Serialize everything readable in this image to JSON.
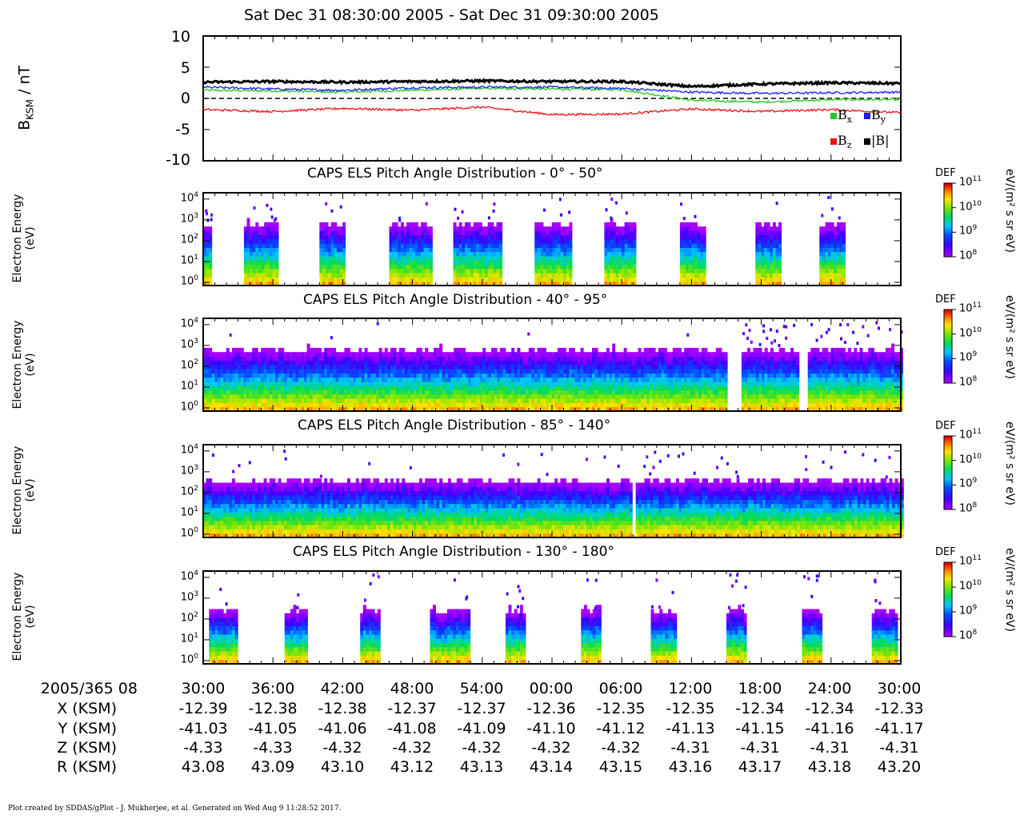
{
  "title": "Sat Dec 31 08:30:00 2005 - Sat Dec 31 09:30:00 2005",
  "mag_panel": {
    "ylabel": "B",
    "ylabel_sub": "KSM",
    "ylabel_unit": " / nT",
    "yticks": [
      "10",
      "5",
      "0",
      "-5",
      "-10"
    ],
    "legend": [
      {
        "label": "B",
        "sub": "x",
        "color": "#22cc22"
      },
      {
        "label": "B",
        "sub": "y",
        "color": "#1a1aff"
      },
      {
        "label": "B",
        "sub": "z",
        "color": "#ee1111"
      },
      {
        "label": "|B|",
        "sub": "",
        "color": "#000000"
      }
    ]
  },
  "spectrogram_panels": [
    {
      "title": "CAPS ELS Pitch Angle Distribution - 0° - 50°",
      "ylabel_line1": "Electron Energy",
      "ylabel_line2": "(eV)"
    },
    {
      "title": "CAPS ELS Pitch Angle Distribution - 40° - 95°",
      "ylabel_line1": "Electron Energy",
      "ylabel_line2": "(eV)"
    },
    {
      "title": "CAPS ELS Pitch Angle Distribution - 85° - 140°",
      "ylabel_line1": "Electron Energy",
      "ylabel_line2": "(eV)"
    },
    {
      "title": "CAPS ELS Pitch Angle Distribution - 130° - 180°",
      "ylabel_line1": "Electron Energy",
      "ylabel_line2": "(eV)"
    }
  ],
  "energy_ticks": [
    "10",
    "10",
    "10",
    "10",
    "10"
  ],
  "energy_tick_exps": [
    "4",
    "3",
    "2",
    "1",
    "0"
  ],
  "colorbar": {
    "label": "DEF",
    "unit": "eV/(m² s sr eV)",
    "ticks": [
      "10",
      "10",
      "10",
      "10"
    ],
    "tick_exps": [
      "11",
      "10",
      "9",
      "8"
    ]
  },
  "ephemeris": {
    "date_label": "2005/365 08",
    "times": [
      "30:00",
      "36:00",
      "42:00",
      "48:00",
      "54:00",
      "00:00",
      "06:00",
      "12:00",
      "18:00",
      "24:00",
      "30:00"
    ],
    "rows": [
      {
        "label": "X (KSM)",
        "values": [
          "-12.39",
          "-12.38",
          "-12.38",
          "-12.37",
          "-12.37",
          "-12.36",
          "-12.35",
          "-12.35",
          "-12.34",
          "-12.34",
          "-12.33"
        ]
      },
      {
        "label": "Y (KSM)",
        "values": [
          "-41.03",
          "-41.05",
          "-41.06",
          "-41.08",
          "-41.09",
          "-41.10",
          "-41.12",
          "-41.13",
          "-41.15",
          "-41.16",
          "-41.17"
        ]
      },
      {
        "label": "Z (KSM)",
        "values": [
          "-4.33",
          "-4.33",
          "-4.32",
          "-4.32",
          "-4.32",
          "-4.32",
          "-4.32",
          "-4.31",
          "-4.31",
          "-4.31",
          "-4.31"
        ]
      },
      {
        "label": "R (KSM)",
        "values": [
          "43.08",
          "43.09",
          "43.10",
          "43.12",
          "43.13",
          "43.14",
          "43.15",
          "43.16",
          "43.17",
          "43.18",
          "43.20"
        ]
      }
    ]
  },
  "footer": "Plot created by SDDAS/gPlot - J. Mukherjee, et al.  Generated on Wed Aug 9 11:28:52 2017.",
  "chart_data": [
    {
      "type": "line",
      "ylabel": "BKSM / nT",
      "ylim": [
        -10,
        10
      ],
      "x_minutes": [
        0,
        6,
        12,
        18,
        24,
        30,
        36,
        42,
        48,
        54,
        60
      ],
      "series": [
        {
          "name": "Bx",
          "values": [
            1.3,
            1.2,
            1.0,
            1.3,
            1.6,
            1.5,
            1.4,
            -0.3,
            -0.6,
            -0.2,
            -0.2
          ]
        },
        {
          "name": "By",
          "values": [
            1.8,
            1.5,
            1.3,
            1.7,
            1.8,
            1.8,
            1.6,
            1.0,
            0.8,
            0.9,
            1.0
          ]
        },
        {
          "name": "Bz",
          "values": [
            -1.8,
            -2.1,
            -1.6,
            -1.9,
            -1.4,
            -2.6,
            -2.5,
            -1.7,
            -2.1,
            -1.8,
            -2.3
          ]
        },
        {
          "name": "|B|",
          "values": [
            2.6,
            2.7,
            2.6,
            2.7,
            2.8,
            2.7,
            2.7,
            1.9,
            2.3,
            2.5,
            2.4
          ]
        }
      ]
    },
    {
      "type": "heatmap",
      "title": "CAPS ELS Pitch Angle Distribution - 0° - 50°",
      "ylabel": "Electron Energy (eV)",
      "ylim": [
        0.7,
        20000
      ],
      "data_segments_minutes": [
        [
          0,
          0.7
        ],
        [
          3.5,
          6.3
        ],
        [
          10,
          12
        ],
        [
          16,
          19.5
        ],
        [
          21.5,
          25.5
        ],
        [
          28.5,
          31.5
        ],
        [
          34.5,
          37.2
        ],
        [
          41,
          43.2
        ],
        [
          47.5,
          49.5
        ],
        [
          53,
          55
        ]
      ],
      "max_energy_eV": 500
    },
    {
      "type": "heatmap",
      "title": "CAPS ELS Pitch Angle Distribution - 40° - 95°",
      "ylabel": "Electron Energy (eV)",
      "ylim": [
        0.7,
        20000
      ],
      "data_segments_minutes": [
        [
          0,
          45
        ],
        [
          46.3,
          51.2
        ],
        [
          52,
          60
        ]
      ],
      "max_energy_eV": 500
    },
    {
      "type": "heatmap",
      "title": "CAPS ELS Pitch Angle Distribution - 85° - 140°",
      "ylabel": "Electron Energy (eV)",
      "ylim": [
        0.7,
        20000
      ],
      "data_segments_minutes": [
        [
          0,
          36.8
        ],
        [
          37.2,
          60
        ]
      ],
      "max_energy_eV": 300
    },
    {
      "type": "heatmap",
      "title": "CAPS ELS Pitch Angle Distribution - 130° - 180°",
      "ylabel": "Electron Energy (eV)",
      "ylim": [
        0.7,
        20000
      ],
      "data_segments_minutes": [
        [
          0.5,
          2.8
        ],
        [
          7,
          8.8
        ],
        [
          13.5,
          15
        ],
        [
          19.5,
          22.8
        ],
        [
          26,
          27.5
        ],
        [
          32.5,
          34
        ],
        [
          38.5,
          40.5
        ],
        [
          45,
          46.7
        ],
        [
          51.5,
          53
        ],
        [
          57.5,
          59.5
        ]
      ],
      "max_energy_eV": 200
    }
  ]
}
